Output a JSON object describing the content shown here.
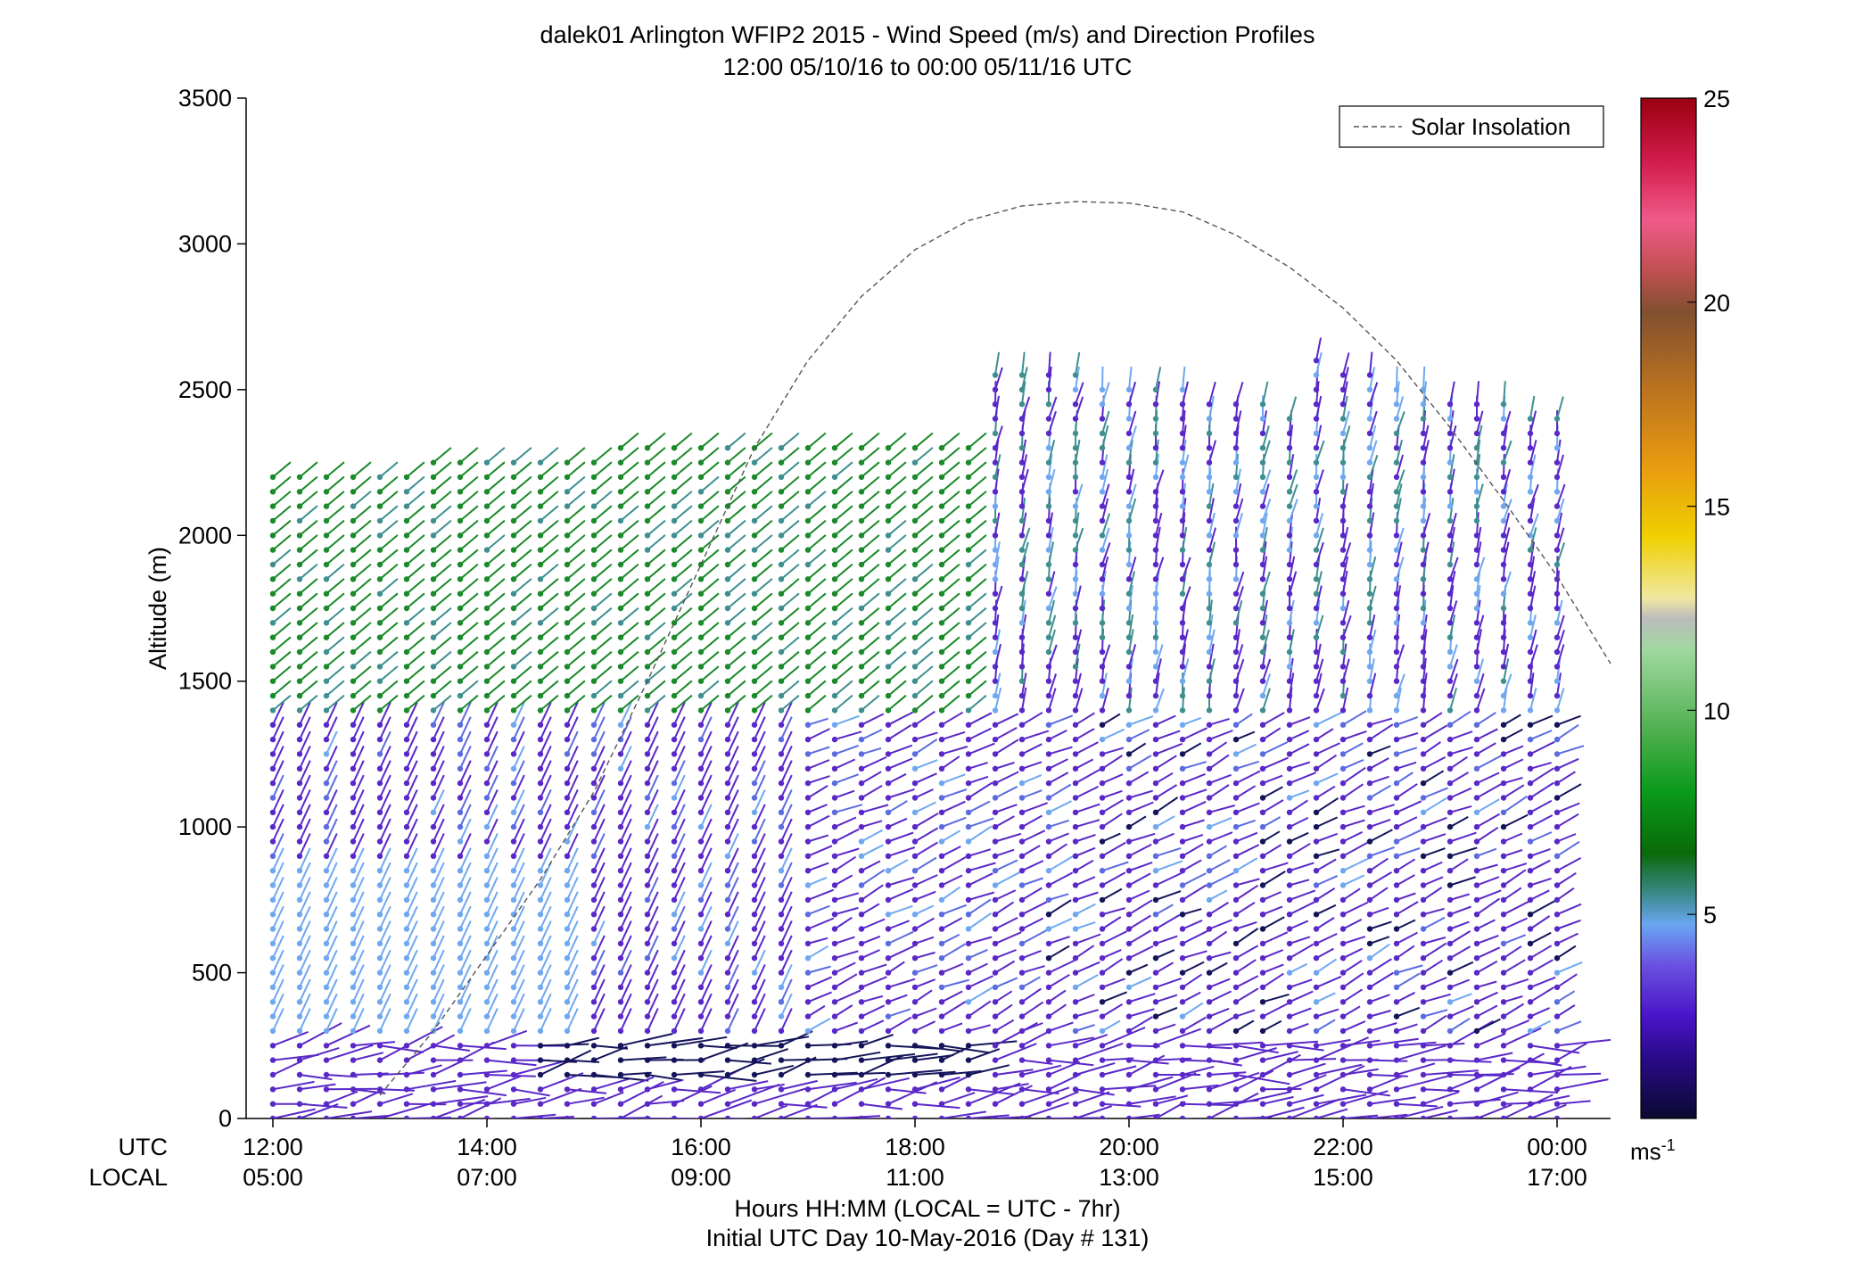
{
  "chart_data": {
    "type": "wind-barb-profile",
    "title_line1": "dalek01 Arlington WFIP2 2015 - Wind Speed (m/s) and Direction Profiles",
    "title_line2": "12:00 05/10/16 to 00:00 05/11/16  UTC",
    "ylabel": "Altitude (m)",
    "xlabel_line1": "Hours HH:MM  (LOCAL = UTC - 7hr)",
    "xlabel_line2": "Initial UTC Day 10-May-2016 (Day # 131)",
    "xrow_utc_label": "UTC",
    "xrow_local_label": "LOCAL",
    "xlim_hours": [
      11.75,
      24.5
    ],
    "ylim": [
      0,
      3500
    ],
    "yticks": [
      0,
      500,
      1000,
      1500,
      2000,
      2500,
      3000,
      3500
    ],
    "yticklabels": [
      "0",
      "500",
      "1000",
      "1500",
      "2000",
      "2500",
      "3000",
      "3500"
    ],
    "xtick_hours": [
      12,
      14,
      16,
      18,
      20,
      22,
      24
    ],
    "xticklabels_utc": [
      "12:00",
      "14:00",
      "16:00",
      "18:00",
      "20:00",
      "22:00",
      "00:00"
    ],
    "xticklabels_local": [
      "05:00",
      "07:00",
      "09:00",
      "11:00",
      "13:00",
      "15:00",
      "17:00"
    ],
    "legend_entry": "Solar Insolation",
    "legend_location": "top-right",
    "solar_insolation": {
      "x_hours": [
        16.0,
        16.5,
        17.0,
        17.5,
        18.0,
        18.5,
        19.0,
        19.5,
        20.0,
        20.5,
        21.0,
        21.5,
        22.0,
        22.5,
        23.0,
        23.5,
        24.0,
        24.5
      ],
      "y_m": [
        1900,
        2300,
        2600,
        2820,
        2980,
        3080,
        3130,
        3145,
        3140,
        3110,
        3030,
        2920,
        2780,
        2600,
        2370,
        2120,
        1860,
        1560
      ]
    },
    "solar_insolation_lower": {
      "x_hours": [
        13.0,
        13.5,
        14.0,
        14.5,
        15.0,
        15.5,
        16.0
      ],
      "y_m": [
        80,
        300,
        560,
        820,
        1120,
        1500,
        1900
      ]
    },
    "colorbar": {
      "label": "ms",
      "label_sup": "-1",
      "ticks": [
        5,
        10,
        15,
        20,
        25
      ],
      "range": [
        0,
        25
      ]
    },
    "profile_times_hours": {
      "start": 12.0,
      "end": 24.0,
      "step": 0.25
    },
    "layers": [
      {
        "from_m": 0,
        "to_m": 300,
        "speed_ms": 2,
        "direction_deg": 260
      },
      {
        "from_m": 300,
        "to_m": 1400,
        "speed_ms": 3,
        "direction_deg": 200
      },
      {
        "from_m": 1400,
        "to_m": 2200,
        "speed_ms": 7,
        "direction_deg": 210
      },
      {
        "from_m": 2200,
        "to_m": 2600,
        "speed_ms": 5,
        "direction_deg": 190
      }
    ]
  },
  "colors": {
    "green": "#1a8a2a",
    "teal": "#3f8f8f",
    "lightblue": "#6fa8f0",
    "blue": "#5b6be0",
    "purple": "#5a28c8",
    "navy": "#14145a"
  }
}
